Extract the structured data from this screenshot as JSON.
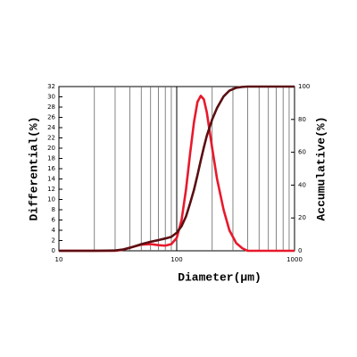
{
  "chart_data": {
    "type": "line",
    "xlabel": "Diameter(µm)",
    "ylabel": "Differential(%)",
    "y2label": "Accumulative(%)",
    "xscale": "log",
    "xlim": [
      10,
      1000
    ],
    "xticks": [
      10,
      100,
      1000
    ],
    "minor_xticks": [
      20,
      30,
      40,
      50,
      60,
      70,
      80,
      90,
      200,
      300,
      400,
      500,
      600,
      700,
      800,
      900
    ],
    "ylim": [
      0,
      32
    ],
    "yticks": [
      0,
      2,
      4,
      6,
      8,
      10,
      12,
      14,
      16,
      18,
      20,
      22,
      24,
      26,
      28,
      30,
      32
    ],
    "y2lim": [
      0,
      100
    ],
    "y2ticks": [
      0,
      20,
      40,
      60,
      80,
      100
    ],
    "grid": true,
    "x": [
      10,
      20,
      30,
      35,
      40,
      50,
      60,
      70,
      80,
      90,
      100,
      110,
      120,
      130,
      140,
      150,
      160,
      170,
      180,
      200,
      220,
      250,
      280,
      320,
      360,
      400,
      500,
      1000
    ],
    "series": [
      {
        "name": "Differential",
        "color": "#e8192c",
        "axis": "y",
        "values": [
          0,
          0,
          0,
          0.2,
          0.6,
          1.2,
          1.3,
          1.1,
          1.0,
          1.3,
          2.5,
          6,
          12,
          19,
          25,
          29,
          30.2,
          29.5,
          27,
          20,
          14,
          8,
          4,
          1.5,
          0.5,
          0,
          0,
          0
        ]
      },
      {
        "name": "Accumulative",
        "color": "#5a0f12",
        "axis": "y2",
        "values": [
          0,
          0,
          0.2,
          0.8,
          1.8,
          4,
          5.5,
          6.5,
          7.5,
          8.5,
          11,
          15,
          21,
          29,
          37,
          46,
          55,
          63,
          70,
          80,
          87,
          94,
          97.5,
          99.3,
          99.8,
          100,
          100,
          100
        ]
      }
    ]
  }
}
